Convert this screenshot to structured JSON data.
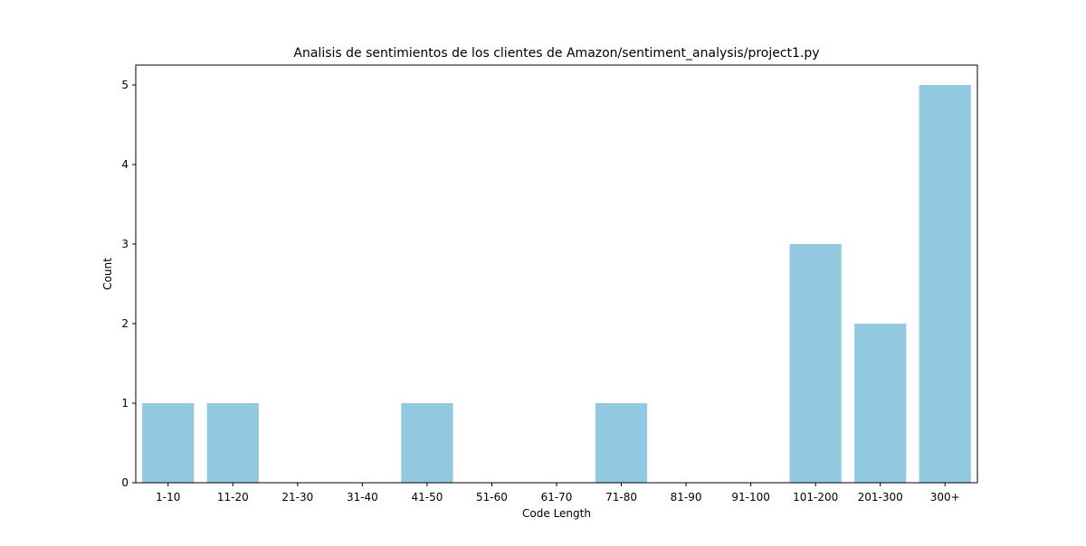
{
  "chart_data": {
    "type": "bar",
    "title": "Analisis de sentimientos de los clientes de Amazon/sentiment_analysis/project1.py",
    "xlabel": "Code Length",
    "ylabel": "Count",
    "categories": [
      "1-10",
      "11-20",
      "21-30",
      "31-40",
      "41-50",
      "51-60",
      "61-70",
      "71-80",
      "81-90",
      "91-100",
      "101-200",
      "201-300",
      "300+"
    ],
    "values": [
      1,
      1,
      0,
      0,
      1,
      0,
      0,
      1,
      0,
      0,
      3,
      2,
      5
    ],
    "yticks": [
      "0",
      "1",
      "2",
      "3",
      "4",
      "5"
    ],
    "ylim": [
      0,
      5.25
    ],
    "grid": false,
    "bar_color": "#92c9e0"
  }
}
